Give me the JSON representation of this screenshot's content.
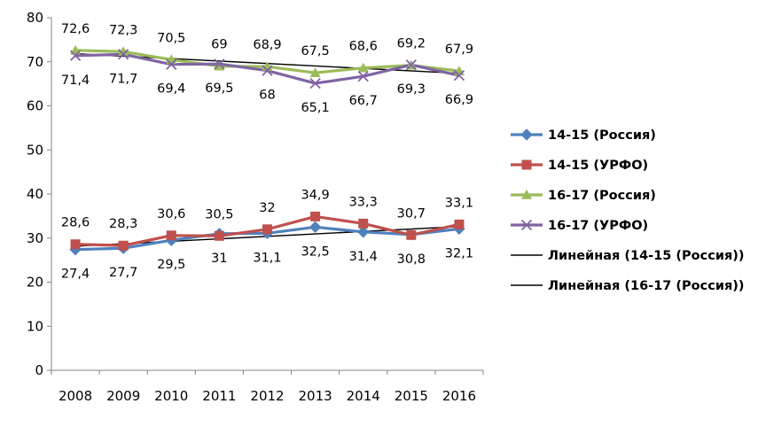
{
  "chart_data": {
    "type": "line",
    "title": "",
    "xlabel": "",
    "ylabel": "",
    "ylim": [
      0,
      80
    ],
    "yticks": [
      0,
      10,
      20,
      30,
      40,
      50,
      60,
      70,
      80
    ],
    "grid": false,
    "legend_position": "right",
    "categories": [
      "2008",
      "2009",
      "2010",
      "2011",
      "2012",
      "2013",
      "2014",
      "2015",
      "2016"
    ],
    "series": [
      {
        "name": "14-15 (Россия)",
        "color": "#4F81BD",
        "marker": "diamond",
        "values": [
          27.4,
          27.7,
          29.5,
          31,
          31.1,
          32.5,
          31.4,
          30.8,
          32.1
        ],
        "labels": [
          "27,4",
          "27,7",
          "29,5",
          "31",
          "31,1",
          "32,5",
          "31,4",
          "30,8",
          "32,1"
        ],
        "label_position": "below"
      },
      {
        "name": "14-15 (УРФО)",
        "color": "#C0504D",
        "marker": "square",
        "values": [
          28.6,
          28.3,
          30.6,
          30.5,
          32,
          34.9,
          33.3,
          30.7,
          33.1
        ],
        "labels": [
          "28,6",
          "28,3",
          "30,6",
          "30,5",
          "32",
          "34,9",
          "33,3",
          "30,7",
          "33,1"
        ],
        "label_position": "above"
      },
      {
        "name": "16-17 (Россия)",
        "color": "#9BBB59",
        "marker": "triangle",
        "values": [
          72.6,
          72.3,
          70.5,
          69,
          68.9,
          67.5,
          68.6,
          69.2,
          67.9
        ],
        "labels": [
          "72,6",
          "72,3",
          "70,5",
          "69",
          "68,9",
          "67,5",
          "68,6",
          "69,2",
          "67,9"
        ],
        "label_position": "above"
      },
      {
        "name": "16-17 (УРФО)",
        "color": "#8064A2",
        "marker": "x",
        "values": [
          71.4,
          71.7,
          69.4,
          69.5,
          68,
          65.1,
          66.7,
          69.3,
          66.9
        ],
        "labels": [
          "71,4",
          "71,7",
          "69,4",
          "69,5",
          "68",
          "65,1",
          "66,7",
          "69,3",
          "66,9"
        ],
        "label_position": "below"
      }
    ],
    "trendlines": [
      {
        "name": "Линейная (14-15 (Россия))",
        "of_series": 0,
        "color": "#000000"
      },
      {
        "name": "Линейная (16-17 (Россия))",
        "of_series": 2,
        "color": "#000000"
      }
    ]
  }
}
